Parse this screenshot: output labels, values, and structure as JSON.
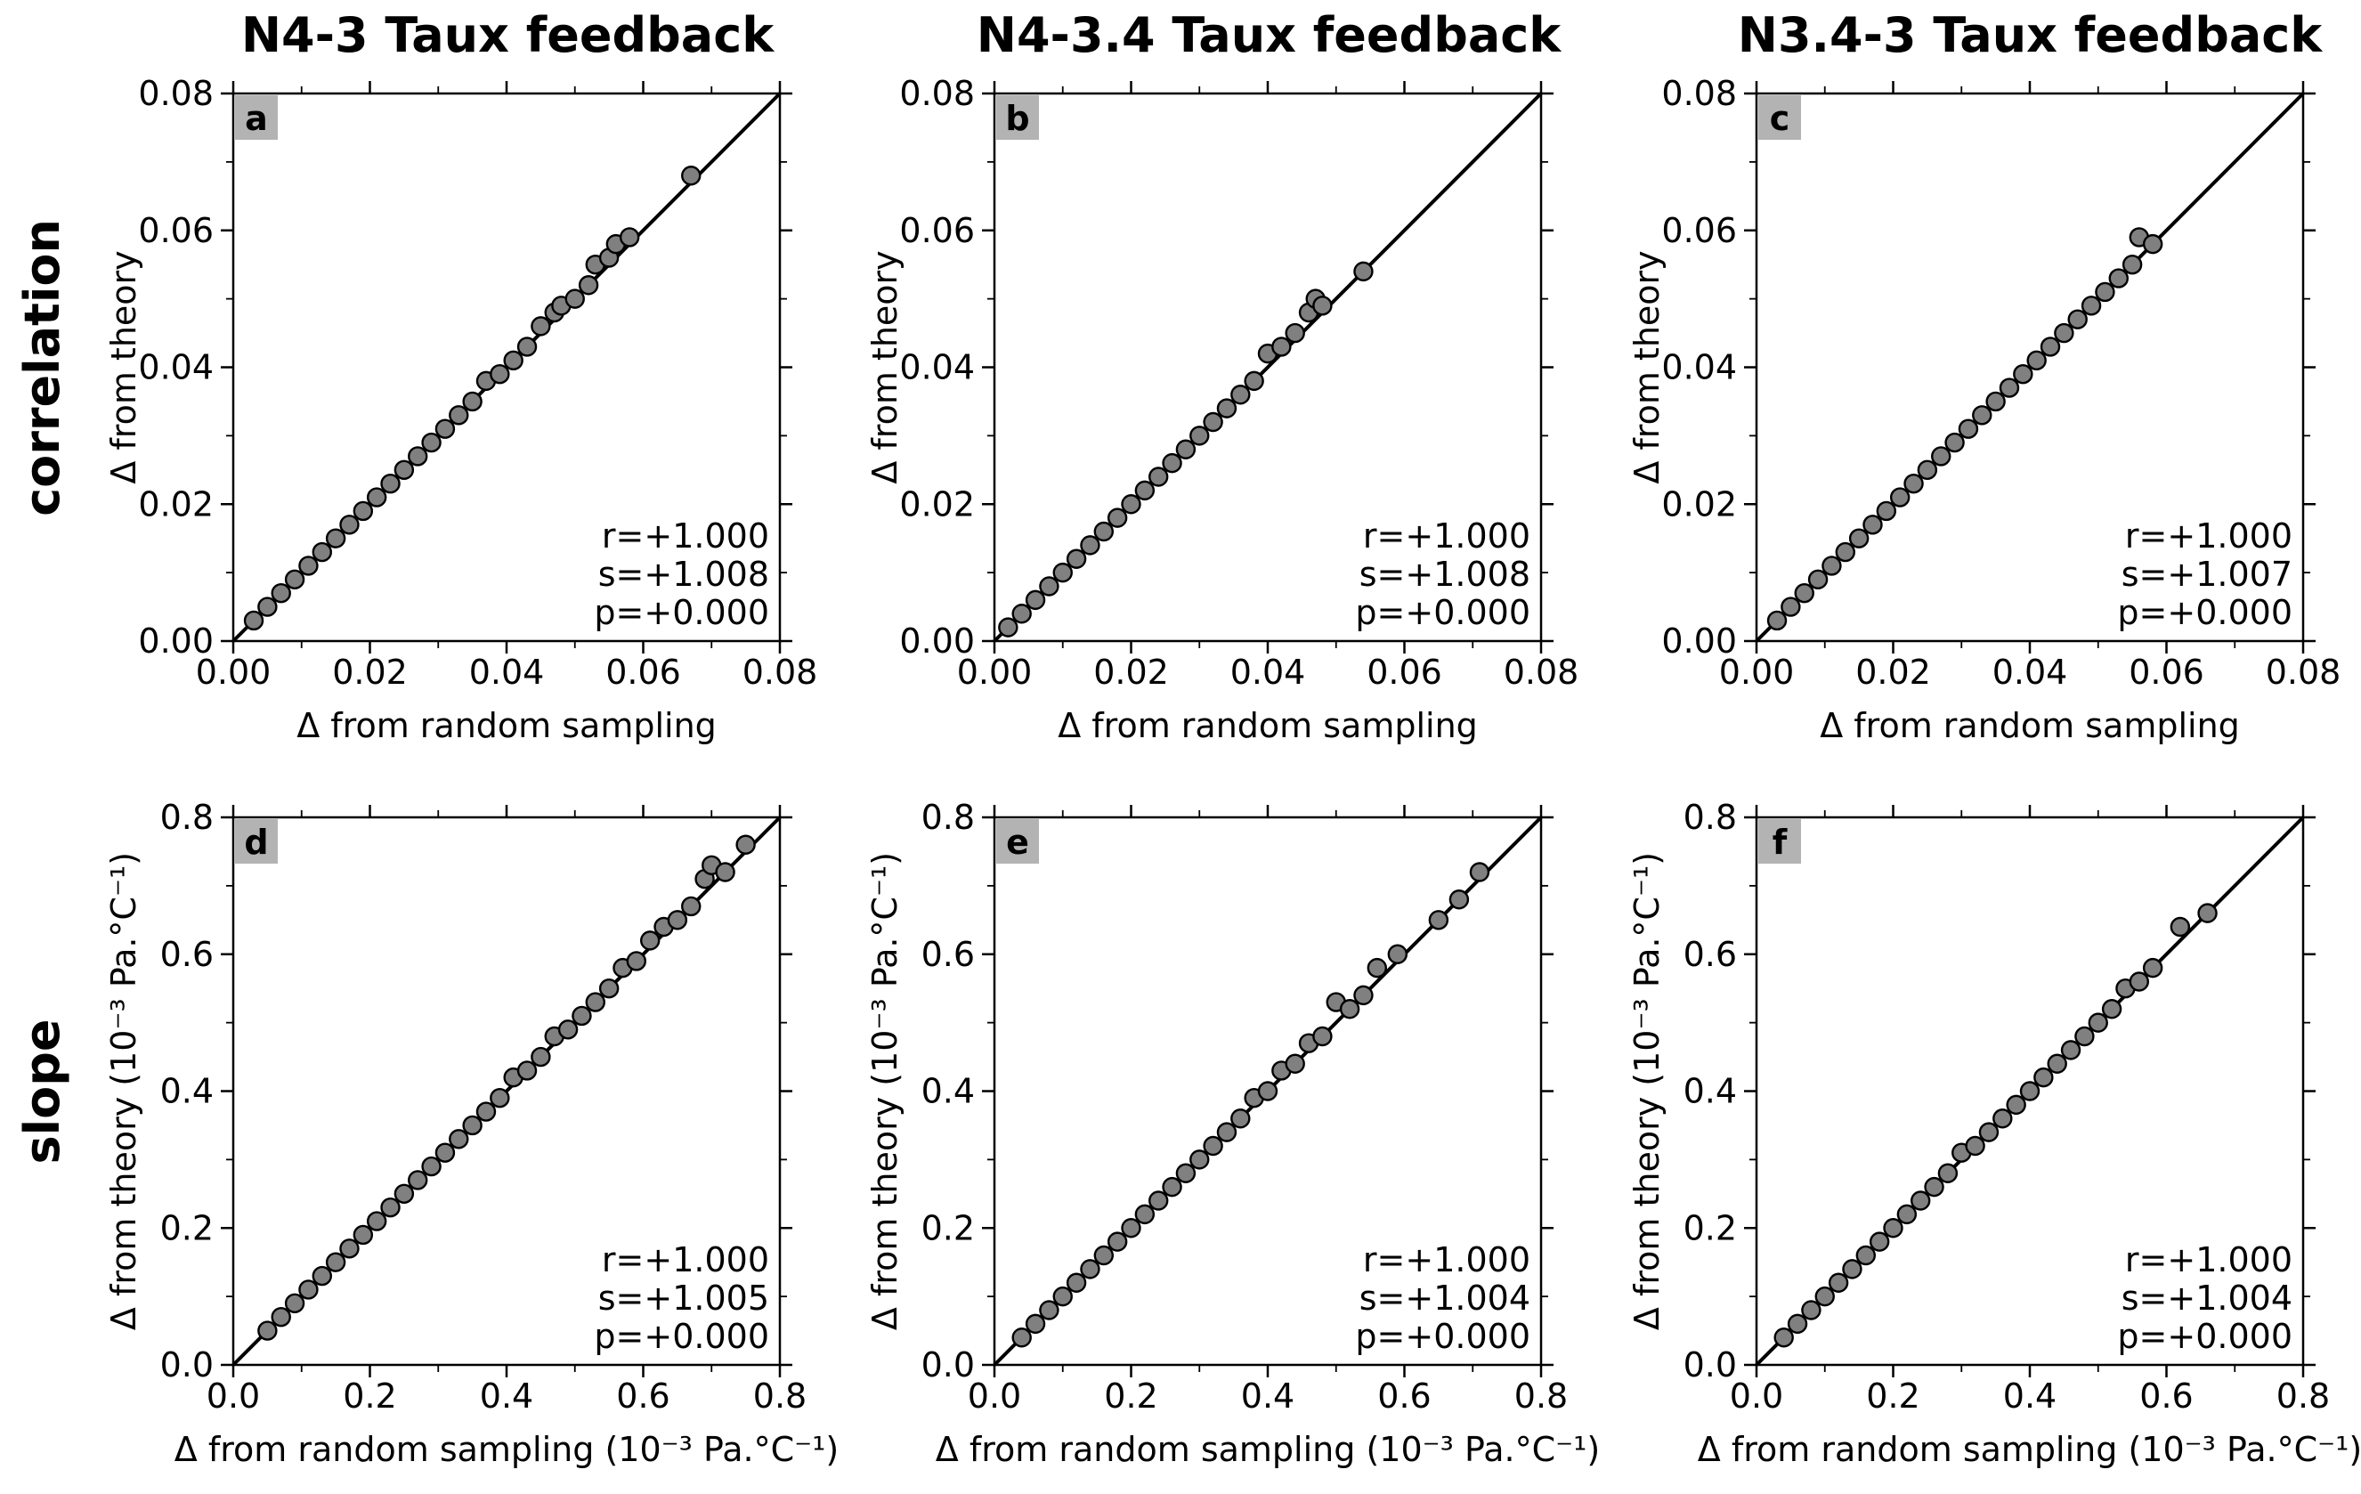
{
  "rows": [
    {
      "label": "correlation"
    },
    {
      "label": "slope"
    }
  ],
  "columns": [
    {
      "title": "N4-3 Taux feedback"
    },
    {
      "title": "N4-3.4 Taux feedback"
    },
    {
      "title": "N3.4-3 Taux feedback"
    }
  ],
  "axis_labels": {
    "correlation_x": "Δ from random sampling",
    "correlation_y": "Δ from theory",
    "slope_x": "Δ from random sampling (10⁻³ Pa.°C⁻¹)",
    "slope_y": "Δ from theory (10⁻³ Pa.°C⁻¹)"
  },
  "colors": {
    "marker_fill": "#808080",
    "marker_edge": "#000000",
    "panel_letter_bg": "#b3b3b3",
    "line": "#000000"
  },
  "chart_data": [
    {
      "panel": "a",
      "type": "scatter",
      "title": "N4-3 Taux feedback",
      "xlabel": "Δ from random sampling",
      "ylabel": "Δ from theory",
      "xlim": [
        0,
        0.08
      ],
      "ylim": [
        0,
        0.08
      ],
      "xticks": [
        "0.00",
        "0.02",
        "0.04",
        "0.06",
        "0.08"
      ],
      "yticks": [
        "0.00",
        "0.02",
        "0.04",
        "0.06",
        "0.08"
      ],
      "one_to_one_line": true,
      "stats": [
        "r=+1.000",
        "s=+1.008",
        "p=+0.000"
      ],
      "points": {
        "x": [
          0.003,
          0.005,
          0.007,
          0.009,
          0.011,
          0.013,
          0.015,
          0.017,
          0.019,
          0.021,
          0.023,
          0.025,
          0.027,
          0.029,
          0.031,
          0.033,
          0.035,
          0.037,
          0.039,
          0.041,
          0.043,
          0.045,
          0.047,
          0.048,
          0.05,
          0.052,
          0.053,
          0.055,
          0.056,
          0.058,
          0.067
        ],
        "y": [
          0.003,
          0.005,
          0.007,
          0.009,
          0.011,
          0.013,
          0.015,
          0.017,
          0.019,
          0.021,
          0.023,
          0.025,
          0.027,
          0.029,
          0.031,
          0.033,
          0.035,
          0.038,
          0.039,
          0.041,
          0.043,
          0.046,
          0.048,
          0.049,
          0.05,
          0.052,
          0.055,
          0.056,
          0.058,
          0.059,
          0.068
        ]
      }
    },
    {
      "panel": "b",
      "type": "scatter",
      "title": "N4-3.4 Taux feedback",
      "xlabel": "Δ from random sampling",
      "ylabel": "Δ from theory",
      "xlim": [
        0,
        0.08
      ],
      "ylim": [
        0,
        0.08
      ],
      "xticks": [
        "0.00",
        "0.02",
        "0.04",
        "0.06",
        "0.08"
      ],
      "yticks": [
        "0.00",
        "0.02",
        "0.04",
        "0.06",
        "0.08"
      ],
      "one_to_one_line": true,
      "stats": [
        "r=+1.000",
        "s=+1.008",
        "p=+0.000"
      ],
      "points": {
        "x": [
          0.002,
          0.004,
          0.006,
          0.008,
          0.01,
          0.012,
          0.014,
          0.016,
          0.018,
          0.02,
          0.022,
          0.024,
          0.026,
          0.028,
          0.03,
          0.032,
          0.034,
          0.036,
          0.038,
          0.04,
          0.042,
          0.044,
          0.046,
          0.047,
          0.048,
          0.054
        ],
        "y": [
          0.002,
          0.004,
          0.006,
          0.008,
          0.01,
          0.012,
          0.014,
          0.016,
          0.018,
          0.02,
          0.022,
          0.024,
          0.026,
          0.028,
          0.03,
          0.032,
          0.034,
          0.036,
          0.038,
          0.042,
          0.043,
          0.045,
          0.048,
          0.05,
          0.049,
          0.054
        ]
      }
    },
    {
      "panel": "c",
      "type": "scatter",
      "title": "N3.4-3 Taux feedback",
      "xlabel": "Δ from random sampling",
      "ylabel": "Δ from theory",
      "xlim": [
        0,
        0.08
      ],
      "ylim": [
        0,
        0.08
      ],
      "xticks": [
        "0.00",
        "0.02",
        "0.04",
        "0.06",
        "0.08"
      ],
      "yticks": [
        "0.00",
        "0.02",
        "0.04",
        "0.06",
        "0.08"
      ],
      "one_to_one_line": true,
      "stats": [
        "r=+1.000",
        "s=+1.007",
        "p=+0.000"
      ],
      "points": {
        "x": [
          0.003,
          0.005,
          0.007,
          0.009,
          0.011,
          0.013,
          0.015,
          0.017,
          0.019,
          0.021,
          0.023,
          0.025,
          0.027,
          0.029,
          0.031,
          0.033,
          0.035,
          0.037,
          0.039,
          0.041,
          0.043,
          0.045,
          0.047,
          0.049,
          0.051,
          0.053,
          0.055,
          0.056,
          0.058
        ],
        "y": [
          0.003,
          0.005,
          0.007,
          0.009,
          0.011,
          0.013,
          0.015,
          0.017,
          0.019,
          0.021,
          0.023,
          0.025,
          0.027,
          0.029,
          0.031,
          0.033,
          0.035,
          0.037,
          0.039,
          0.041,
          0.043,
          0.045,
          0.047,
          0.049,
          0.051,
          0.053,
          0.055,
          0.059,
          0.058
        ]
      }
    },
    {
      "panel": "d",
      "type": "scatter",
      "xlabel": "Δ from random sampling (10⁻³ Pa.°C⁻¹)",
      "ylabel": "Δ from theory (10⁻³ Pa.°C⁻¹)",
      "xlim": [
        0,
        0.8
      ],
      "ylim": [
        0,
        0.8
      ],
      "xticks": [
        "0.0",
        "0.2",
        "0.4",
        "0.6",
        "0.8"
      ],
      "yticks": [
        "0.0",
        "0.2",
        "0.4",
        "0.6",
        "0.8"
      ],
      "one_to_one_line": true,
      "stats": [
        "r=+1.000",
        "s=+1.005",
        "p=+0.000"
      ],
      "points": {
        "x": [
          0.05,
          0.07,
          0.09,
          0.11,
          0.13,
          0.15,
          0.17,
          0.19,
          0.21,
          0.23,
          0.25,
          0.27,
          0.29,
          0.31,
          0.33,
          0.35,
          0.37,
          0.39,
          0.41,
          0.43,
          0.45,
          0.47,
          0.49,
          0.51,
          0.53,
          0.55,
          0.57,
          0.59,
          0.61,
          0.63,
          0.65,
          0.67,
          0.69,
          0.7,
          0.72,
          0.75
        ],
        "y": [
          0.05,
          0.07,
          0.09,
          0.11,
          0.13,
          0.15,
          0.17,
          0.19,
          0.21,
          0.23,
          0.25,
          0.27,
          0.29,
          0.31,
          0.33,
          0.35,
          0.37,
          0.39,
          0.42,
          0.43,
          0.45,
          0.48,
          0.49,
          0.51,
          0.53,
          0.55,
          0.58,
          0.59,
          0.62,
          0.64,
          0.65,
          0.67,
          0.71,
          0.73,
          0.72,
          0.76
        ]
      }
    },
    {
      "panel": "e",
      "type": "scatter",
      "xlabel": "Δ from random sampling (10⁻³ Pa.°C⁻¹)",
      "ylabel": "Δ from theory (10⁻³ Pa.°C⁻¹)",
      "xlim": [
        0,
        0.8
      ],
      "ylim": [
        0,
        0.8
      ],
      "xticks": [
        "0.0",
        "0.2",
        "0.4",
        "0.6",
        "0.8"
      ],
      "yticks": [
        "0.0",
        "0.2",
        "0.4",
        "0.6",
        "0.8"
      ],
      "one_to_one_line": true,
      "stats": [
        "r=+1.000",
        "s=+1.004",
        "p=+0.000"
      ],
      "points": {
        "x": [
          0.04,
          0.06,
          0.08,
          0.1,
          0.12,
          0.14,
          0.16,
          0.18,
          0.2,
          0.22,
          0.24,
          0.26,
          0.28,
          0.3,
          0.32,
          0.34,
          0.36,
          0.38,
          0.4,
          0.42,
          0.44,
          0.46,
          0.48,
          0.5,
          0.52,
          0.54,
          0.56,
          0.59,
          0.65,
          0.68,
          0.71
        ],
        "y": [
          0.04,
          0.06,
          0.08,
          0.1,
          0.12,
          0.14,
          0.16,
          0.18,
          0.2,
          0.22,
          0.24,
          0.26,
          0.28,
          0.3,
          0.32,
          0.34,
          0.36,
          0.39,
          0.4,
          0.43,
          0.44,
          0.47,
          0.48,
          0.53,
          0.52,
          0.54,
          0.58,
          0.6,
          0.65,
          0.68,
          0.72
        ]
      }
    },
    {
      "panel": "f",
      "type": "scatter",
      "xlabel": "Δ from random sampling (10⁻³ Pa.°C⁻¹)",
      "ylabel": "Δ from theory (10⁻³ Pa.°C⁻¹)",
      "xlim": [
        0,
        0.8
      ],
      "ylim": [
        0,
        0.8
      ],
      "xticks": [
        "0.0",
        "0.2",
        "0.4",
        "0.6",
        "0.8"
      ],
      "yticks": [
        "0.0",
        "0.2",
        "0.4",
        "0.6",
        "0.8"
      ],
      "one_to_one_line": true,
      "stats": [
        "r=+1.000",
        "s=+1.004",
        "p=+0.000"
      ],
      "points": {
        "x": [
          0.04,
          0.06,
          0.08,
          0.1,
          0.12,
          0.14,
          0.16,
          0.18,
          0.2,
          0.22,
          0.24,
          0.26,
          0.28,
          0.3,
          0.32,
          0.34,
          0.36,
          0.38,
          0.4,
          0.42,
          0.44,
          0.46,
          0.48,
          0.5,
          0.52,
          0.54,
          0.56,
          0.58,
          0.62,
          0.66
        ],
        "y": [
          0.04,
          0.06,
          0.08,
          0.1,
          0.12,
          0.14,
          0.16,
          0.18,
          0.2,
          0.22,
          0.24,
          0.26,
          0.28,
          0.31,
          0.32,
          0.34,
          0.36,
          0.38,
          0.4,
          0.42,
          0.44,
          0.46,
          0.48,
          0.5,
          0.52,
          0.55,
          0.56,
          0.58,
          0.64,
          0.66
        ]
      }
    }
  ]
}
